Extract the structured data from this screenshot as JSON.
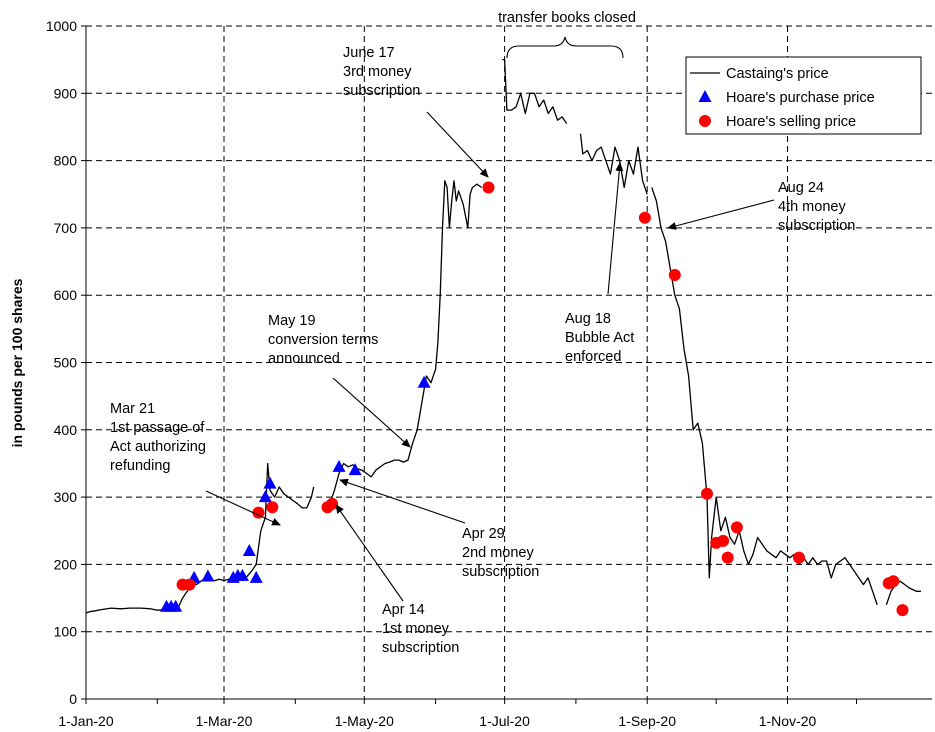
{
  "chart_data": {
    "type": "line",
    "title": "",
    "xlabel": "",
    "ylabel": "in pounds per 100 shares",
    "xlim": [
      "1720-01-01",
      "1720-12-31"
    ],
    "ylim": [
      0,
      1000
    ],
    "x_ticks": [
      "1-Jan-20",
      "1-Mar-20",
      "1-May-20",
      "1-Jul-20",
      "1-Sep-20",
      "1-Nov-20"
    ],
    "y_ticks": [
      0,
      100,
      200,
      300,
      400,
      500,
      600,
      700,
      800,
      900,
      1000
    ],
    "grid": "dashed vertical lines at month ticks, dashed horizontal lines at 100 intervals",
    "legend": {
      "placement": "top-right"
    },
    "series": [
      {
        "name": "Castaing's price",
        "kind": "line",
        "color": "#000000",
        "segments": [
          [
            [
              "1720-01-01",
              128
            ],
            [
              "1720-01-03",
              130
            ],
            [
              "1720-01-05",
              131
            ],
            [
              "1720-01-08",
              133
            ],
            [
              "1720-01-12",
              135
            ],
            [
              "1720-01-16",
              134
            ],
            [
              "1720-01-20",
              135
            ],
            [
              "1720-01-25",
              135
            ],
            [
              "1720-01-29",
              134
            ],
            [
              "1720-02-01",
              132
            ],
            [
              "1720-02-04",
              133
            ],
            [
              "1720-02-07",
              131
            ],
            [
              "1720-02-10",
              135
            ],
            [
              "1720-02-12",
              150
            ],
            [
              "1720-02-14",
              160
            ],
            [
              "1720-02-16",
              175
            ],
            [
              "1720-02-18",
              170
            ],
            [
              "1720-02-20",
              175
            ],
            [
              "1720-02-22",
              180
            ],
            [
              "1720-02-24",
              178
            ],
            [
              "1720-02-26",
              176
            ],
            [
              "1720-02-28",
              178
            ],
            [
              "1720-03-01",
              176
            ],
            [
              "1720-03-03",
              178
            ],
            [
              "1720-03-05",
              175
            ],
            [
              "1720-03-07",
              178
            ],
            [
              "1720-03-09",
              179
            ],
            [
              "1720-03-11",
              182
            ],
            [
              "1720-03-13",
              190
            ],
            [
              "1720-03-15",
              200
            ],
            [
              "1720-03-17",
              250
            ],
            [
              "1720-03-19",
              270
            ],
            [
              "1720-03-20",
              350
            ],
            [
              "1720-03-21",
              310
            ],
            [
              "1720-03-23",
              300
            ],
            [
              "1720-03-25",
              315
            ],
            [
              "1720-03-27",
              305
            ],
            [
              "1720-03-29",
              300
            ],
            [
              "1720-03-31",
              295
            ],
            [
              "1720-04-02",
              290
            ],
            [
              "1720-04-04",
              284
            ],
            [
              "1720-04-06",
              284
            ],
            [
              "1720-04-08",
              300
            ],
            [
              "1720-04-09",
              315
            ]
          ],
          [
            [
              "1720-04-16",
              290
            ],
            [
              "1720-04-18",
              310
            ],
            [
              "1720-04-20",
              335
            ],
            [
              "1720-04-22",
              350
            ],
            [
              "1720-04-24",
              345
            ],
            [
              "1720-04-26",
              348
            ],
            [
              "1720-04-28",
              342
            ],
            [
              "1720-04-30",
              340
            ],
            [
              "1720-05-02",
              335
            ],
            [
              "1720-05-04",
              330
            ],
            [
              "1720-05-06",
              340
            ],
            [
              "1720-05-08",
              345
            ],
            [
              "1720-05-10",
              350
            ],
            [
              "1720-05-12",
              352
            ],
            [
              "1720-05-14",
              355
            ],
            [
              "1720-05-16",
              355
            ],
            [
              "1720-05-18",
              352
            ],
            [
              "1720-05-20",
              355
            ],
            [
              "1720-05-22",
              380
            ],
            [
              "1720-05-24",
              400
            ],
            [
              "1720-05-26",
              440
            ],
            [
              "1720-05-28",
              480
            ],
            [
              "1720-05-30",
              470
            ],
            [
              "1720-06-01",
              490
            ],
            [
              "1720-06-02",
              530
            ],
            [
              "1720-06-03",
              600
            ],
            [
              "1720-06-04",
              700
            ],
            [
              "1720-06-05",
              770
            ],
            [
              "1720-06-06",
              760
            ],
            [
              "1720-06-07",
              700
            ],
            [
              "1720-06-08",
              740
            ],
            [
              "1720-06-09",
              770
            ],
            [
              "1720-06-10",
              740
            ],
            [
              "1720-06-11",
              755
            ],
            [
              "1720-06-13",
              735
            ],
            [
              "1720-06-15",
              700
            ],
            [
              "1720-06-16",
              750
            ],
            [
              "1720-06-17",
              760
            ],
            [
              "1720-06-19",
              765
            ],
            [
              "1720-06-21",
              760
            ]
          ],
          [
            [
              "1720-06-30",
              950
            ],
            [
              "1720-07-01",
              950
            ],
            [
              "1720-07-02",
              875
            ],
            [
              "1720-07-04",
              875
            ],
            [
              "1720-07-06",
              880
            ],
            [
              "1720-07-08",
              900
            ],
            [
              "1720-07-10",
              870
            ],
            [
              "1720-07-12",
              900
            ],
            [
              "1720-07-14",
              900
            ],
            [
              "1720-07-16",
              880
            ],
            [
              "1720-07-18",
              890
            ],
            [
              "1720-07-20",
              870
            ],
            [
              "1720-07-22",
              880
            ],
            [
              "1720-07-24",
              860
            ],
            [
              "1720-07-26",
              865
            ],
            [
              "1720-07-28",
              855
            ]
          ],
          [
            [
              "1720-08-03",
              840
            ],
            [
              "1720-08-04",
              810
            ],
            [
              "1720-08-06",
              815
            ],
            [
              "1720-08-08",
              800
            ],
            [
              "1720-08-10",
              815
            ],
            [
              "1720-08-12",
              820
            ],
            [
              "1720-08-14",
              800
            ],
            [
              "1720-08-16",
              780
            ],
            [
              "1720-08-18",
              820
            ],
            [
              "1720-08-20",
              800
            ],
            [
              "1720-08-22",
              760
            ],
            [
              "1720-08-24",
              800
            ],
            [
              "1720-08-26",
              780
            ],
            [
              "1720-08-28",
              820
            ],
            [
              "1720-08-30",
              770
            ],
            [
              "1720-09-01",
              750
            ]
          ],
          [
            [
              "1720-09-03",
              760
            ],
            [
              "1720-09-05",
              740
            ],
            [
              "1720-09-07",
              700
            ],
            [
              "1720-09-09",
              680
            ],
            [
              "1720-09-11",
              640
            ],
            [
              "1720-09-13",
              600
            ],
            [
              "1720-09-15",
              580
            ],
            [
              "1720-09-17",
              520
            ],
            [
              "1720-09-19",
              480
            ],
            [
              "1720-09-21",
              400
            ],
            [
              "1720-09-23",
              410
            ],
            [
              "1720-09-25",
              380
            ],
            [
              "1720-09-27",
              300
            ],
            [
              "1720-09-28",
              180
            ],
            [
              "1720-09-29",
              240
            ],
            [
              "1720-10-01",
              300
            ],
            [
              "1720-10-03",
              250
            ],
            [
              "1720-10-05",
              270
            ],
            [
              "1720-10-07",
              240
            ],
            [
              "1720-10-09",
              230
            ],
            [
              "1720-10-11",
              250
            ],
            [
              "1720-10-13",
              220
            ],
            [
              "1720-10-15",
              200
            ],
            [
              "1720-10-17",
              215
            ],
            [
              "1720-10-19",
              240
            ],
            [
              "1720-10-21",
              230
            ],
            [
              "1720-10-23",
              220
            ],
            [
              "1720-10-25",
              215
            ],
            [
              "1720-10-27",
              210
            ],
            [
              "1720-10-29",
              220
            ],
            [
              "1720-10-31",
              215
            ],
            [
              "1720-11-02",
              210
            ],
            [
              "1720-11-04",
              215
            ],
            [
              "1720-11-06",
              200
            ],
            [
              "1720-11-08",
              210
            ],
            [
              "1720-11-10",
              200
            ],
            [
              "1720-11-12",
              210
            ],
            [
              "1720-11-14",
              200
            ],
            [
              "1720-11-16",
              205
            ],
            [
              "1720-11-18",
              205
            ],
            [
              "1720-11-20",
              180
            ],
            [
              "1720-11-22",
              200
            ],
            [
              "1720-11-24",
              205
            ],
            [
              "1720-11-26",
              210
            ],
            [
              "1720-11-28",
              200
            ],
            [
              "1720-11-30",
              190
            ],
            [
              "1720-12-02",
              180
            ],
            [
              "1720-12-04",
              170
            ],
            [
              "1720-12-06",
              180
            ],
            [
              "1720-12-08",
              160
            ],
            [
              "1720-12-10",
              140
            ]
          ],
          [
            [
              "1720-12-14",
              140
            ],
            [
              "1720-12-16",
              160
            ],
            [
              "1720-12-18",
              170
            ],
            [
              "1720-12-20",
              175
            ],
            [
              "1720-12-22",
              170
            ],
            [
              "1720-12-24",
              165
            ],
            [
              "1720-12-27",
              160
            ],
            [
              "1720-12-29",
              160
            ]
          ]
        ]
      },
      {
        "name": "Hoare's purchase price",
        "kind": "scatter",
        "marker": "triangle",
        "color": "#0000ff",
        "points": [
          [
            "1720-02-05",
            137
          ],
          [
            "1720-02-07",
            137
          ],
          [
            "1720-02-09",
            137
          ],
          [
            "1720-02-17",
            180
          ],
          [
            "1720-02-23",
            182
          ],
          [
            "1720-03-05",
            180
          ],
          [
            "1720-03-07",
            183
          ],
          [
            "1720-03-09",
            183
          ],
          [
            "1720-03-12",
            220
          ],
          [
            "1720-03-15",
            180
          ],
          [
            "1720-03-19",
            300
          ],
          [
            "1720-03-21",
            320
          ],
          [
            "1720-04-20",
            345
          ],
          [
            "1720-04-27",
            340
          ],
          [
            "1720-05-27",
            470
          ]
        ]
      },
      {
        "name": "Hoare's selling price",
        "kind": "scatter",
        "marker": "circle",
        "color": "#ff0000",
        "points": [
          [
            "1720-02-12",
            170
          ],
          [
            "1720-02-15",
            170
          ],
          [
            "1720-03-16",
            277
          ],
          [
            "1720-03-22",
            285
          ],
          [
            "1720-04-15",
            285
          ],
          [
            "1720-04-17",
            290
          ],
          [
            "1720-06-24",
            760
          ],
          [
            "1720-08-31",
            715
          ],
          [
            "1720-09-13",
            630
          ],
          [
            "1720-09-27",
            305
          ],
          [
            "1720-10-01",
            232
          ],
          [
            "1720-10-04",
            235
          ],
          [
            "1720-10-06",
            210
          ],
          [
            "1720-10-10",
            255
          ],
          [
            "1720-11-06",
            210
          ],
          [
            "1720-12-15",
            172
          ],
          [
            "1720-12-17",
            175
          ],
          [
            "1720-12-21",
            132
          ]
        ]
      }
    ],
    "annotations": [
      {
        "id": "books",
        "lines": [
          "transfer books closed"
        ]
      },
      {
        "id": "june17",
        "lines": [
          "June 17",
          "3rd money",
          "subscription"
        ]
      },
      {
        "id": "aug24",
        "lines": [
          "Aug 24",
          "4th money",
          "subscription"
        ]
      },
      {
        "id": "aug18",
        "lines": [
          "Aug 18",
          "Bubble Act",
          "enforced"
        ]
      },
      {
        "id": "may19",
        "lines": [
          "May 19",
          "conversion terms",
          "announced"
        ]
      },
      {
        "id": "mar21",
        "lines": [
          "Mar 21",
          "1st passage of",
          "Act authorizing",
          "refunding"
        ]
      },
      {
        "id": "apr29",
        "lines": [
          "Apr 29",
          "2nd money",
          "subscription"
        ]
      },
      {
        "id": "apr14",
        "lines": [
          "Apr 14",
          "1st money",
          "subscription"
        ]
      }
    ]
  }
}
